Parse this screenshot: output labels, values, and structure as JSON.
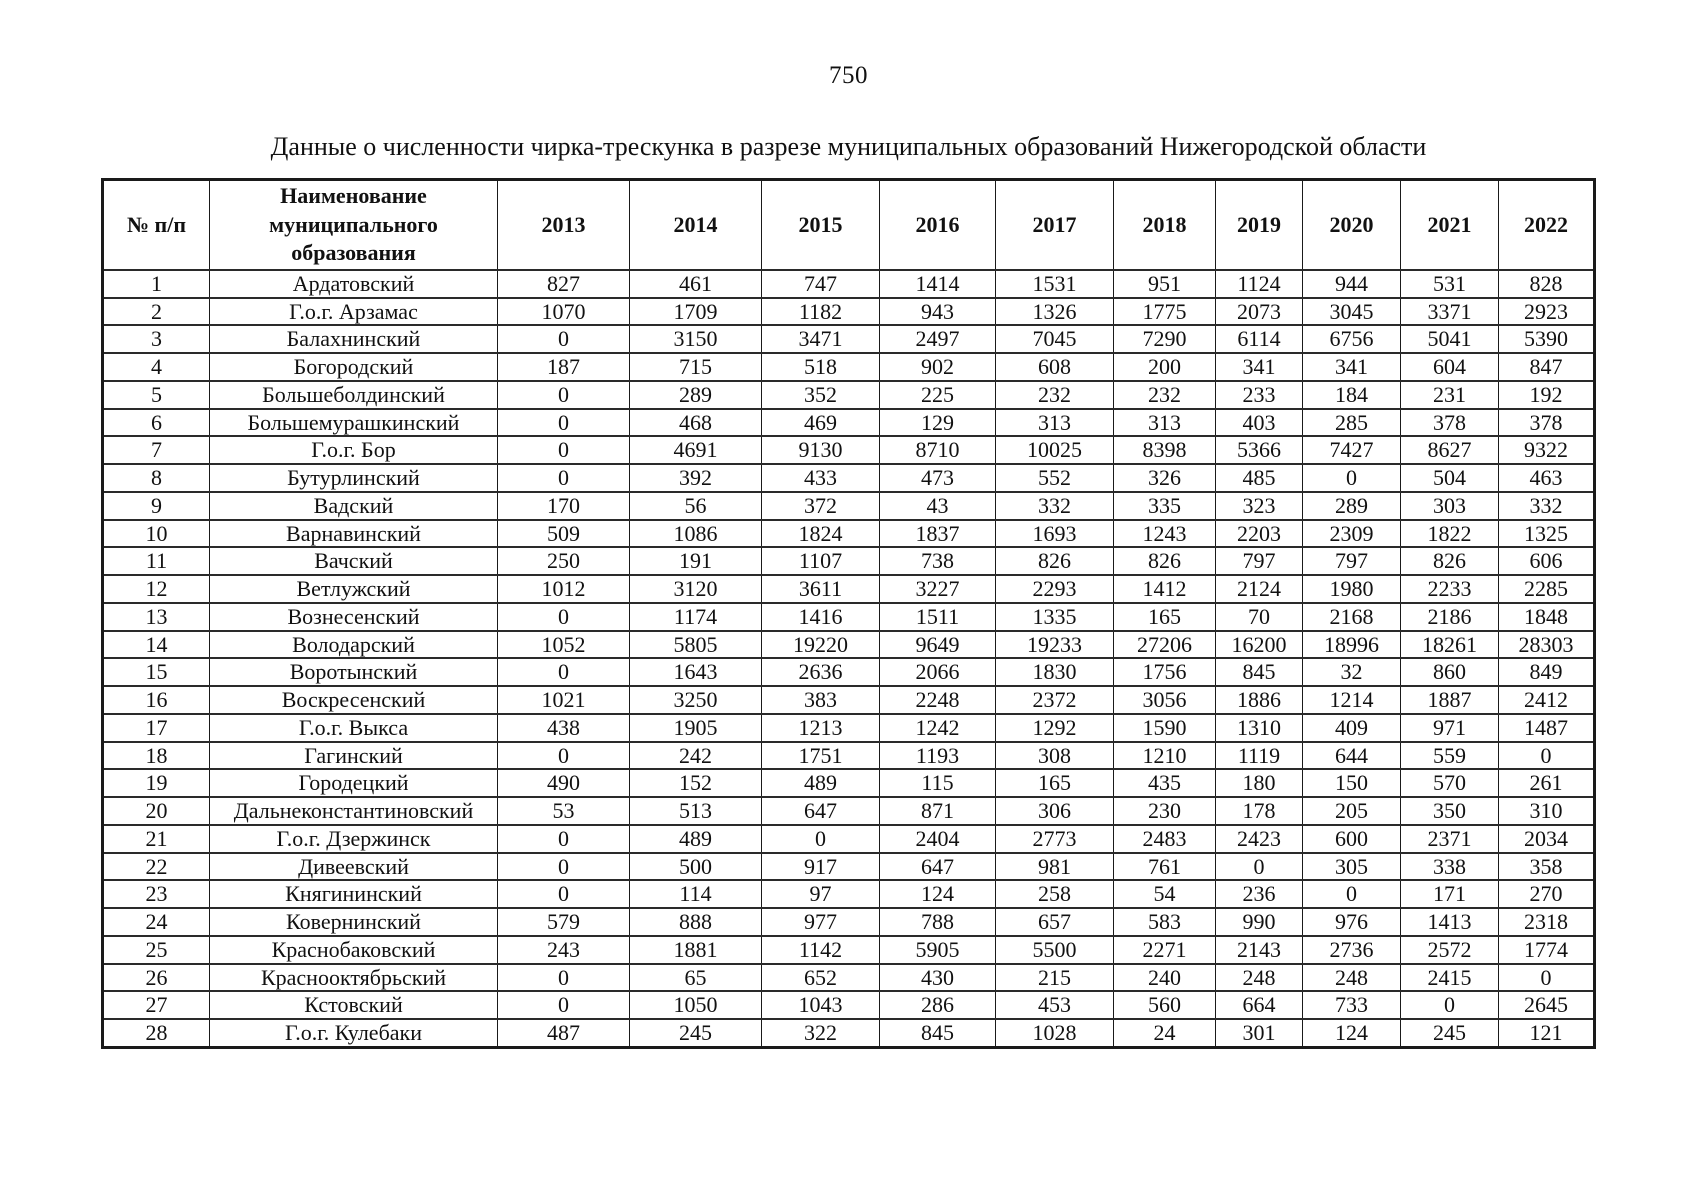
{
  "page": {
    "number": "750",
    "title": "Данные о численности чирка-трескунка в разрезе муниципальных образований Нижегородской области"
  },
  "table": {
    "headers": [
      "№ п/п",
      "Наименование муниципального образования",
      "2013",
      "2014",
      "2015",
      "2016",
      "2017",
      "2018",
      "2019",
      "2020",
      "2021",
      "2022"
    ],
    "rows": [
      {
        "num": "1",
        "name": "Ардатовский",
        "values": [
          "827",
          "461",
          "747",
          "1414",
          "1531",
          "951",
          "1124",
          "944",
          "531",
          "828"
        ]
      },
      {
        "num": "2",
        "name": "Г.о.г. Арзамас",
        "values": [
          "1070",
          "1709",
          "1182",
          "943",
          "1326",
          "1775",
          "2073",
          "3045",
          "3371",
          "2923"
        ]
      },
      {
        "num": "3",
        "name": "Балахнинский",
        "values": [
          "0",
          "3150",
          "3471",
          "2497",
          "7045",
          "7290",
          "6114",
          "6756",
          "5041",
          "5390"
        ]
      },
      {
        "num": "4",
        "name": "Богородский",
        "values": [
          "187",
          "715",
          "518",
          "902",
          "608",
          "200",
          "341",
          "341",
          "604",
          "847"
        ]
      },
      {
        "num": "5",
        "name": "Большеболдинский",
        "values": [
          "0",
          "289",
          "352",
          "225",
          "232",
          "232",
          "233",
          "184",
          "231",
          "192"
        ]
      },
      {
        "num": "6",
        "name": "Большемурашкинский",
        "values": [
          "0",
          "468",
          "469",
          "129",
          "313",
          "313",
          "403",
          "285",
          "378",
          "378"
        ]
      },
      {
        "num": "7",
        "name": "Г.о.г. Бор",
        "values": [
          "0",
          "4691",
          "9130",
          "8710",
          "10025",
          "8398",
          "5366",
          "7427",
          "8627",
          "9322"
        ]
      },
      {
        "num": "8",
        "name": "Бутурлинский",
        "values": [
          "0",
          "392",
          "433",
          "473",
          "552",
          "326",
          "485",
          "0",
          "504",
          "463"
        ]
      },
      {
        "num": "9",
        "name": "Вадский",
        "values": [
          "170",
          "56",
          "372",
          "43",
          "332",
          "335",
          "323",
          "289",
          "303",
          "332"
        ]
      },
      {
        "num": "10",
        "name": "Варнавинский",
        "values": [
          "509",
          "1086",
          "1824",
          "1837",
          "1693",
          "1243",
          "2203",
          "2309",
          "1822",
          "1325"
        ]
      },
      {
        "num": "11",
        "name": "Вачский",
        "values": [
          "250",
          "191",
          "1107",
          "738",
          "826",
          "826",
          "797",
          "797",
          "826",
          "606"
        ]
      },
      {
        "num": "12",
        "name": "Ветлужский",
        "values": [
          "1012",
          "3120",
          "3611",
          "3227",
          "2293",
          "1412",
          "2124",
          "1980",
          "2233",
          "2285"
        ]
      },
      {
        "num": "13",
        "name": "Вознесенский",
        "values": [
          "0",
          "1174",
          "1416",
          "1511",
          "1335",
          "165",
          "70",
          "2168",
          "2186",
          "1848"
        ]
      },
      {
        "num": "14",
        "name": "Володарский",
        "values": [
          "1052",
          "5805",
          "19220",
          "9649",
          "19233",
          "27206",
          "16200",
          "18996",
          "18261",
          "28303"
        ]
      },
      {
        "num": "15",
        "name": "Воротынский",
        "values": [
          "0",
          "1643",
          "2636",
          "2066",
          "1830",
          "1756",
          "845",
          "32",
          "860",
          "849"
        ]
      },
      {
        "num": "16",
        "name": "Воскресенский",
        "values": [
          "1021",
          "3250",
          "383",
          "2248",
          "2372",
          "3056",
          "1886",
          "1214",
          "1887",
          "2412"
        ]
      },
      {
        "num": "17",
        "name": "Г.о.г. Выкса",
        "values": [
          "438",
          "1905",
          "1213",
          "1242",
          "1292",
          "1590",
          "1310",
          "409",
          "971",
          "1487"
        ]
      },
      {
        "num": "18",
        "name": "Гагинский",
        "values": [
          "0",
          "242",
          "1751",
          "1193",
          "308",
          "1210",
          "1119",
          "644",
          "559",
          "0"
        ]
      },
      {
        "num": "19",
        "name": "Городецкий",
        "values": [
          "490",
          "152",
          "489",
          "115",
          "165",
          "435",
          "180",
          "150",
          "570",
          "261"
        ]
      },
      {
        "num": "20",
        "name": "Дальнеконстантиновский",
        "values": [
          "53",
          "513",
          "647",
          "871",
          "306",
          "230",
          "178",
          "205",
          "350",
          "310"
        ]
      },
      {
        "num": "21",
        "name": "Г.о.г. Дзержинск",
        "values": [
          "0",
          "489",
          "0",
          "2404",
          "2773",
          "2483",
          "2423",
          "600",
          "2371",
          "2034"
        ]
      },
      {
        "num": "22",
        "name": "Дивеевский",
        "values": [
          "0",
          "500",
          "917",
          "647",
          "981",
          "761",
          "0",
          "305",
          "338",
          "358"
        ]
      },
      {
        "num": "23",
        "name": "Княгининский",
        "values": [
          "0",
          "114",
          "97",
          "124",
          "258",
          "54",
          "236",
          "0",
          "171",
          "270"
        ]
      },
      {
        "num": "24",
        "name": "Ковернинский",
        "values": [
          "579",
          "888",
          "977",
          "788",
          "657",
          "583",
          "990",
          "976",
          "1413",
          "2318"
        ]
      },
      {
        "num": "25",
        "name": "Краснобаковский",
        "values": [
          "243",
          "1881",
          "1142",
          "5905",
          "5500",
          "2271",
          "2143",
          "2736",
          "2572",
          "1774"
        ]
      },
      {
        "num": "26",
        "name": "Краснооктябрьский",
        "values": [
          "0",
          "65",
          "652",
          "430",
          "215",
          "240",
          "248",
          "248",
          "2415",
          "0"
        ]
      },
      {
        "num": "27",
        "name": "Кстовский",
        "values": [
          "0",
          "1050",
          "1043",
          "286",
          "453",
          "560",
          "664",
          "733",
          "0",
          "2645"
        ]
      },
      {
        "num": "28",
        "name": "Г.о.г. Кулебаки",
        "values": [
          "487",
          "245",
          "322",
          "845",
          "1028",
          "24",
          "301",
          "124",
          "245",
          "121"
        ]
      }
    ]
  }
}
